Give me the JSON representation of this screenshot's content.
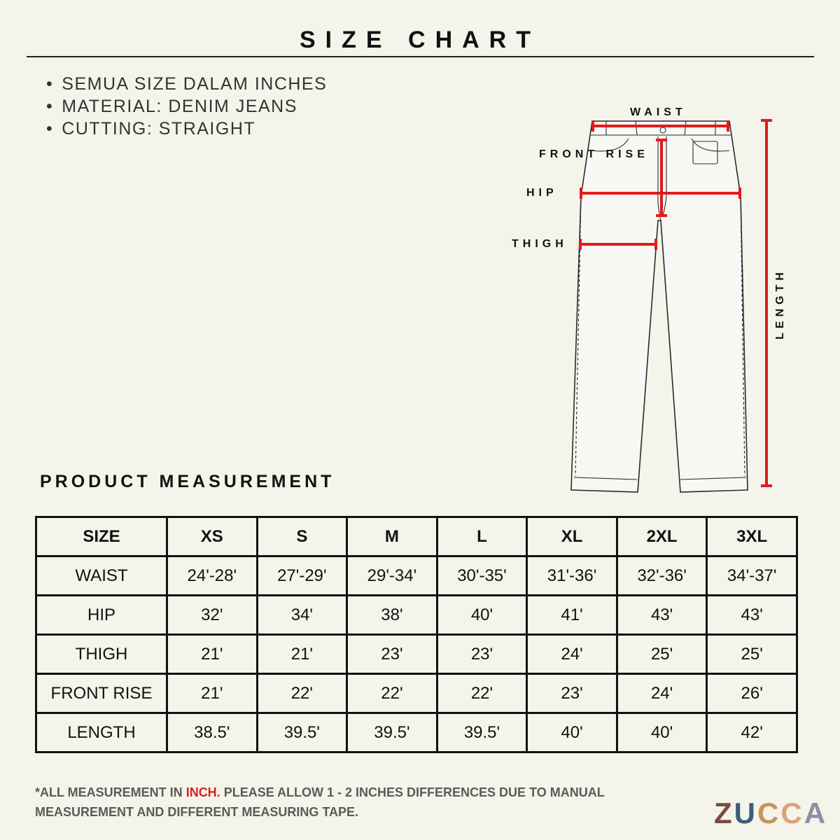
{
  "title": "SIZE CHART",
  "notes": [
    "SEMUA SIZE DALAM INCHES",
    "MATERIAL: DENIM JEANS",
    "CUTTING: STRAIGHT"
  ],
  "diagram": {
    "labels": {
      "waist": "WAIST",
      "front_rise": "FRONT RISE",
      "hip": "HIP",
      "thigh": "THIGH",
      "length": "LENGTH"
    },
    "measure_color": "#e01b1b",
    "outline_color": "#2a2a2a"
  },
  "section_title": "PRODUCT MEASUREMENT",
  "table": {
    "headers": [
      "SIZE",
      "XS",
      "S",
      "M",
      "L",
      "XL",
      "2XL",
      "3XL"
    ],
    "rows": [
      [
        "WAIST",
        "24'-28'",
        "27'-29'",
        "29'-34'",
        "30'-35'",
        "31'-36'",
        "32'-36'",
        "34'-37'"
      ],
      [
        "HIP",
        "32'",
        "34'",
        "38'",
        "40'",
        "41'",
        "43'",
        "43'"
      ],
      [
        "THIGH",
        "21'",
        "21'",
        "23'",
        "23'",
        "24'",
        "25'",
        "25'"
      ],
      [
        "FRONT RISE",
        "21'",
        "22'",
        "22'",
        "22'",
        "23'",
        "24'",
        "26'"
      ],
      [
        "LENGTH",
        "38.5'",
        "39.5'",
        "39.5'",
        "39.5'",
        "40'",
        "40'",
        "42'"
      ]
    ]
  },
  "footnote": {
    "prefix": "*ALL MEASUREMENT IN ",
    "highlight": "INCH.",
    "suffix": " PLEASE ALLOW 1 - 2 INCHES DIFFERENCES DUE TO MANUAL MEASUREMENT AND DIFFERENT MEASURING TAPE.",
    "highlight_color": "#d62020"
  },
  "logo": {
    "letters": [
      "Z",
      "U",
      "C",
      "C",
      "A"
    ],
    "colors": [
      "#7a4b3f",
      "#3f5d78",
      "#c9935a",
      "#d9a27e",
      "#8e8ea6"
    ]
  }
}
